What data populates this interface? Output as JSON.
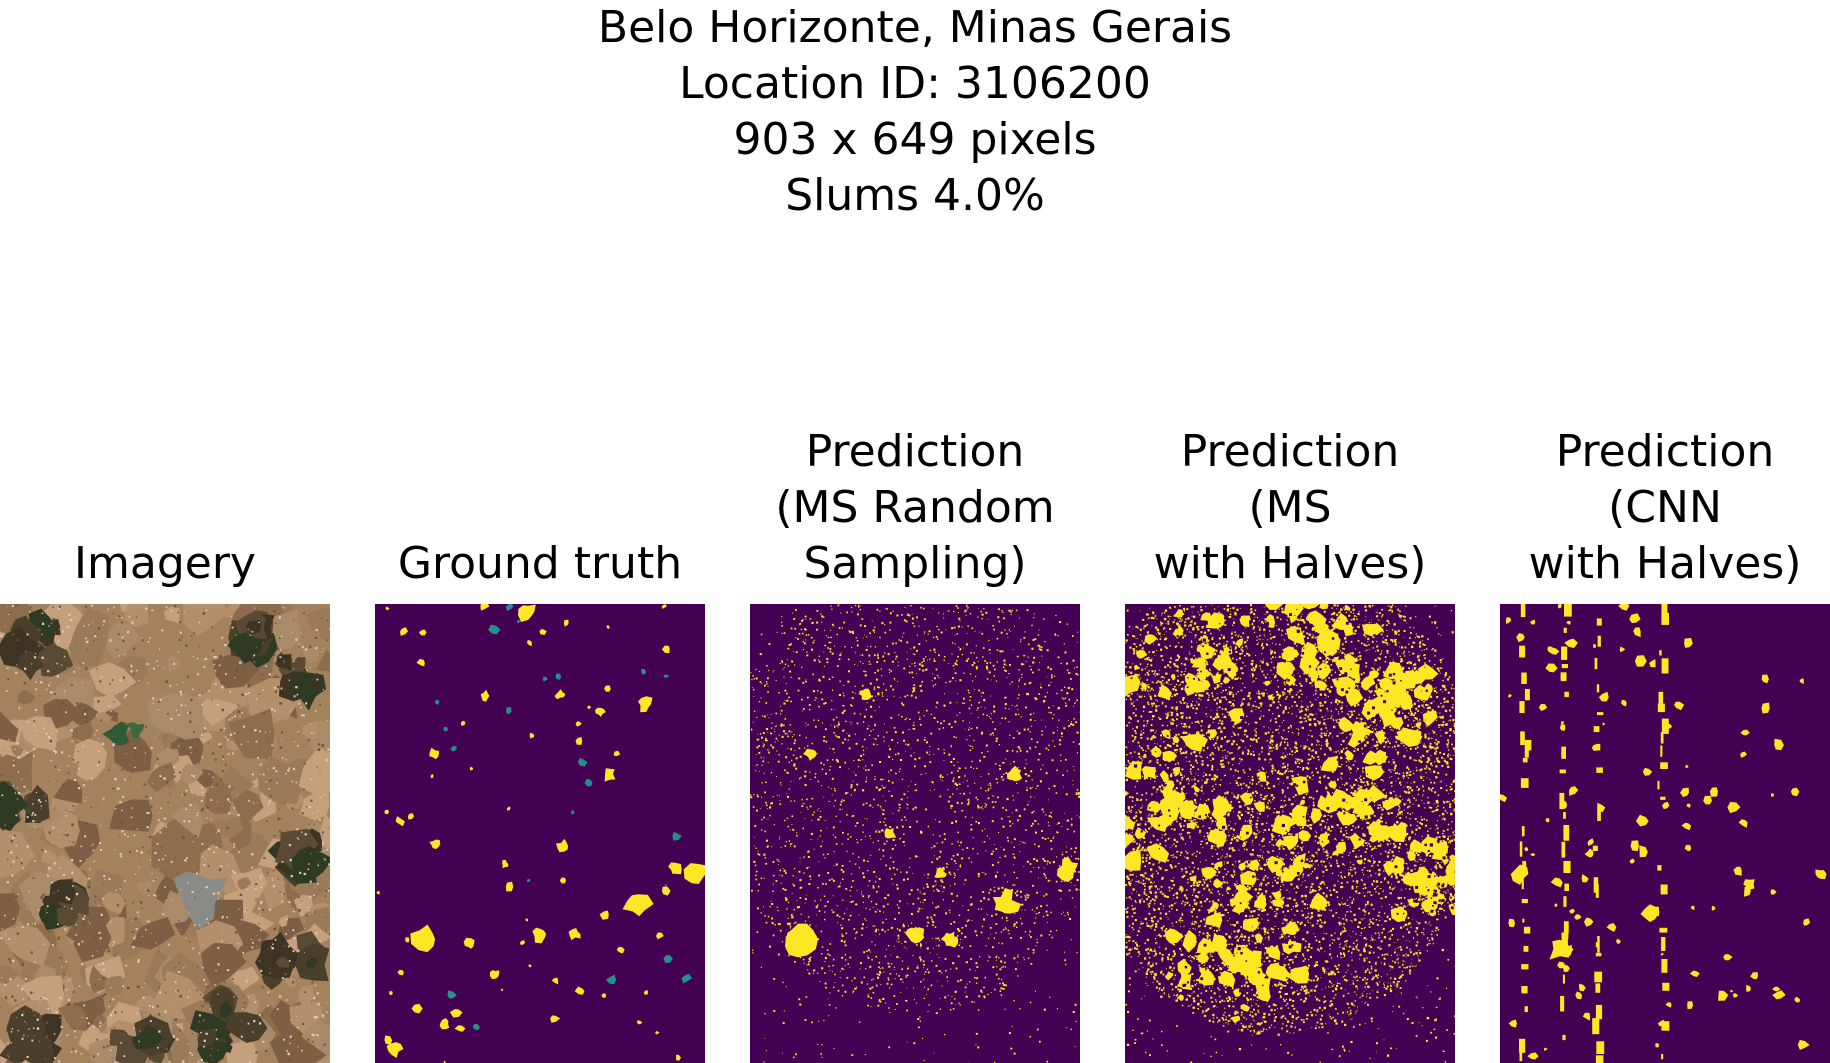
{
  "header": {
    "location_name": "Belo Horizonte, Minas Gerais",
    "location_id": "Location ID: 3106200",
    "dimensions": "903 x 649 pixels",
    "slums": "Slums 4.0%"
  },
  "panels": [
    {
      "title_lines": [
        "Imagery"
      ],
      "kind": "imagery"
    },
    {
      "title_lines": [
        "Ground truth"
      ],
      "kind": "mask-sparse"
    },
    {
      "title_lines": [
        "Prediction",
        "(MS Random",
        "Sampling)"
      ],
      "kind": "mask-speckle"
    },
    {
      "title_lines": [
        "Prediction",
        "(MS",
        "with Halves)"
      ],
      "kind": "mask-dense"
    },
    {
      "title_lines": [
        "Prediction",
        "(CNN",
        "with Halves)"
      ],
      "kind": "mask-striped"
    }
  ],
  "colors": {
    "mask_background": "#440154",
    "mask_foreground": "#fde725",
    "mask_edge": "#21918c",
    "imagery_base": "#a4825e"
  }
}
